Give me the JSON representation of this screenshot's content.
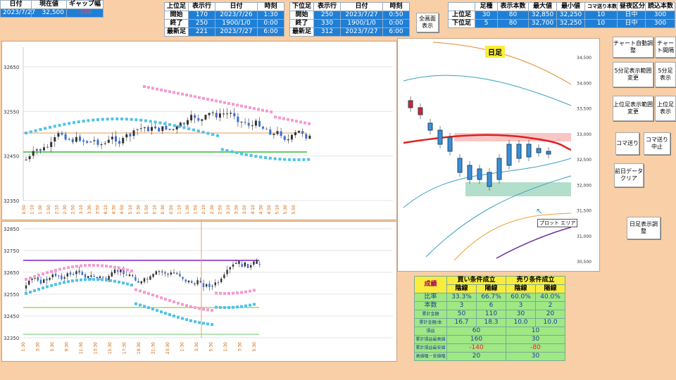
{
  "top_left": {
    "headers": [
      "日付",
      "現在値",
      "ギャップ幅"
    ],
    "values": [
      "2023/7/27",
      "32,500",
      "-100"
    ]
  },
  "upper_table": {
    "headers": [
      "上位足",
      "表示行",
      "日付",
      "時刻"
    ],
    "rows": [
      [
        "開始",
        "170",
        "2023/7/26",
        "1:30"
      ],
      [
        "終了",
        "250",
        "1900/1/0",
        "0:00"
      ],
      [
        "最新足",
        "221",
        "2023/7/27",
        "6:00"
      ]
    ]
  },
  "lower_table": {
    "headers": [
      "下位足",
      "表示行",
      "日付",
      "時刻"
    ],
    "rows": [
      [
        "開始",
        "250",
        "2023/7/27",
        "0:50"
      ],
      [
        "終了",
        "330",
        "1900/1/0",
        "0:00"
      ],
      [
        "最新足",
        "312",
        "2023/7/27",
        "6:00"
      ]
    ]
  },
  "fullscreen_button": "全画面表示",
  "right_table": {
    "headers": [
      "",
      "足種",
      "表示本数",
      "最大値",
      "最小値",
      "コマ送り本数",
      "昼夜区分",
      "読込本数"
    ],
    "rows": [
      [
        "上位足",
        "30",
        "80",
        "32,850",
        "32,250",
        "10",
        "日中",
        "300"
      ],
      [
        "下位足",
        "5",
        "80",
        "32,700",
        "32,250",
        "10",
        "日中",
        "300"
      ]
    ]
  },
  "buttons": {
    "chart_auto": "チャート自動調整",
    "chart_sep": "チャート間隔",
    "min5_range": "5分足表示範囲変更",
    "min5_table": "5分足表示",
    "upper_range": "上位足表示範囲変更",
    "upper_table": "上位足表示",
    "koma": "コマ送り",
    "koma_stop": "コマ送り中止",
    "clear_prev": "前日データクリア",
    "daily_adjust": "日足表示調整"
  },
  "daily_chart": {
    "label": "日足",
    "tooltip": "プロット エリア",
    "y_ticks": [
      "34,500",
      "34,000",
      "33,500",
      "33,000",
      "32,500",
      "32,000",
      "31,500",
      "31,000",
      "30,500"
    ]
  },
  "upper_chart": {
    "y_ticks": [
      "32650",
      "32550",
      "32450",
      "32350"
    ],
    "x_ticks": [
      "0:50",
      "1:10",
      "1:30",
      "1:50",
      "2:10",
      "2:30",
      "2:50",
      "3:10",
      "3:30",
      "3:50",
      "4:10",
      "4:30",
      "4:50",
      "5:10",
      "5:30",
      "5:50",
      "0:10",
      "0:30",
      "0:50",
      "1:10",
      "1:30",
      "1:50",
      "2:10",
      "2:30",
      "2:50",
      "3:10",
      "3:30",
      "3:50",
      "4:10",
      "4:30",
      "4:50",
      "5:10",
      "5:30",
      "5:50"
    ]
  },
  "lower_chart": {
    "y_ticks": [
      "32850",
      "32750",
      "32650",
      "32550",
      "32450",
      "32350"
    ],
    "x_ticks": [
      "1:30",
      "3:30",
      "5:30",
      "9:30",
      "11:30",
      "13:30",
      "15:30",
      "17:30",
      "19:30",
      "21:30",
      "23:30",
      "1:30",
      "3:30",
      "5:30",
      "1:30",
      "3:30",
      "5:30"
    ]
  },
  "stats": {
    "title_left": "成績",
    "buy_title": "買い条件成立",
    "sell_title": "売り条件成立",
    "sub": [
      "陰線",
      "陽線",
      "陰線",
      "陽線"
    ],
    "rows": [
      {
        "label": "比率",
        "vals": [
          "33.3%",
          "66.7%",
          "60.0%",
          "40.0%"
        ]
      },
      {
        "label": "本数",
        "vals": [
          "3",
          "6",
          "3",
          "2"
        ]
      },
      {
        "label": "累計金額",
        "vals": [
          "50",
          "110",
          "30",
          "20"
        ]
      },
      {
        "label": "累計金額/本",
        "vals": [
          "16.7",
          "18.3",
          "10.0",
          "10.0"
        ]
      }
    ],
    "rows2": [
      {
        "label": "損益",
        "buy": "60",
        "sell": "10"
      },
      {
        "label": "累計損益最高値",
        "buy": "160",
        "sell": "30"
      },
      {
        "label": "累計損益最安値",
        "buy": "-140",
        "sell": "-80"
      },
      {
        "label": "高値幅－安値幅",
        "buy": "20",
        "sell": "30"
      }
    ]
  }
}
